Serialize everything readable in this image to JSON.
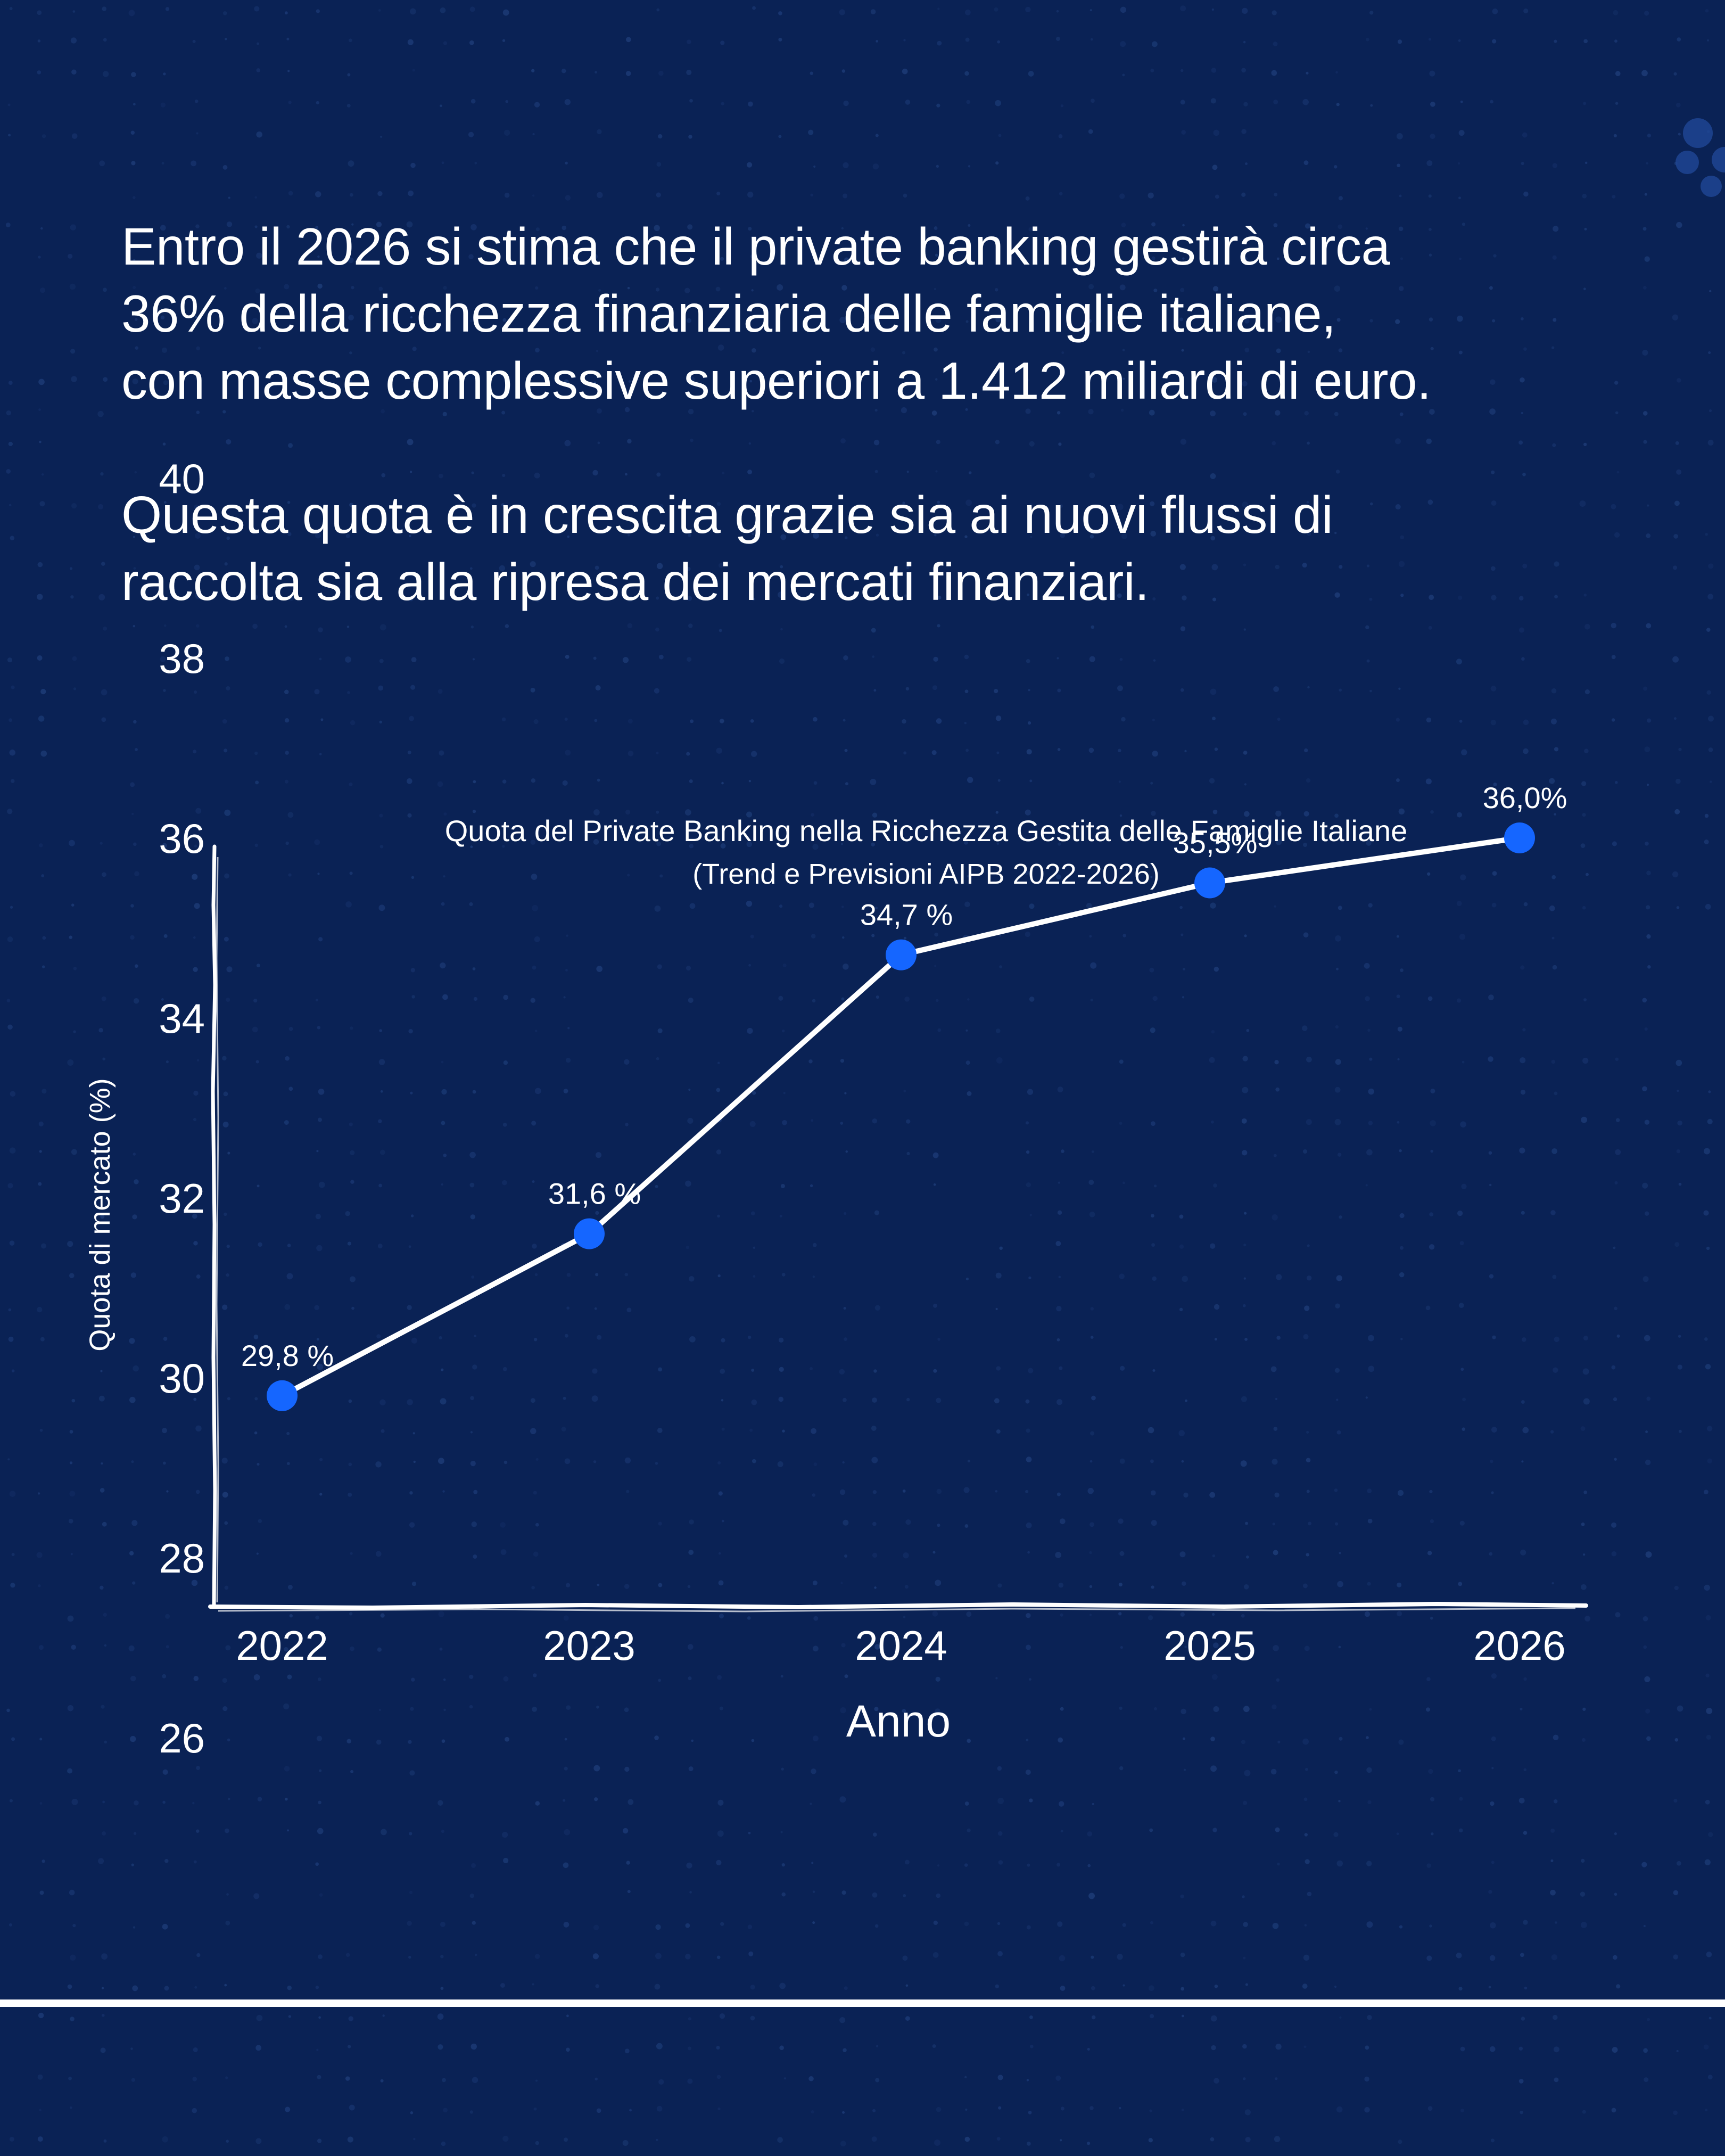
{
  "intro": {
    "paragraph1_lines": [
      "Entro il 2026 si stima che il private banking gestirà circa",
      "36% della ricchezza finanziaria delle famiglie italiane,",
      "con masse complessive superiori a 1.412 miliardi di euro."
    ],
    "paragraph2_lines": [
      "Questa quota è in crescita grazie sia ai nuovi flussi di",
      "raccolta sia alla ripresa dei mercati finanziari."
    ]
  },
  "chart_data": {
    "type": "line",
    "title": "Quota del Private Banking nella Ricchezza Gestita delle Famiglie Italiane",
    "subtitle": "(Trend e Previsioni AIPB 2022-2026)",
    "xlabel": "Anno",
    "ylabel": "Quota di mercato (%)",
    "categories": [
      "2022",
      "2023",
      "2024",
      "2025",
      "2026"
    ],
    "values": [
      29.8,
      31.6,
      34.7,
      35.5,
      36.0
    ],
    "data_labels": [
      "29,8 %",
      "31,6 %",
      "34,7 %",
      "35,5%",
      "36,0%"
    ],
    "y_ticks": [
      "26",
      "28",
      "30",
      "32",
      "34",
      "36",
      "38",
      "40"
    ],
    "y_tick_values": [
      26,
      28,
      30,
      32,
      34,
      36,
      38,
      40
    ],
    "ylim": [
      25,
      41
    ],
    "grid": false,
    "legend": "none",
    "colors": {
      "background": "#0a2255",
      "line": "#ffffff",
      "marker": "#1566ff",
      "text": "#ffffff"
    }
  }
}
